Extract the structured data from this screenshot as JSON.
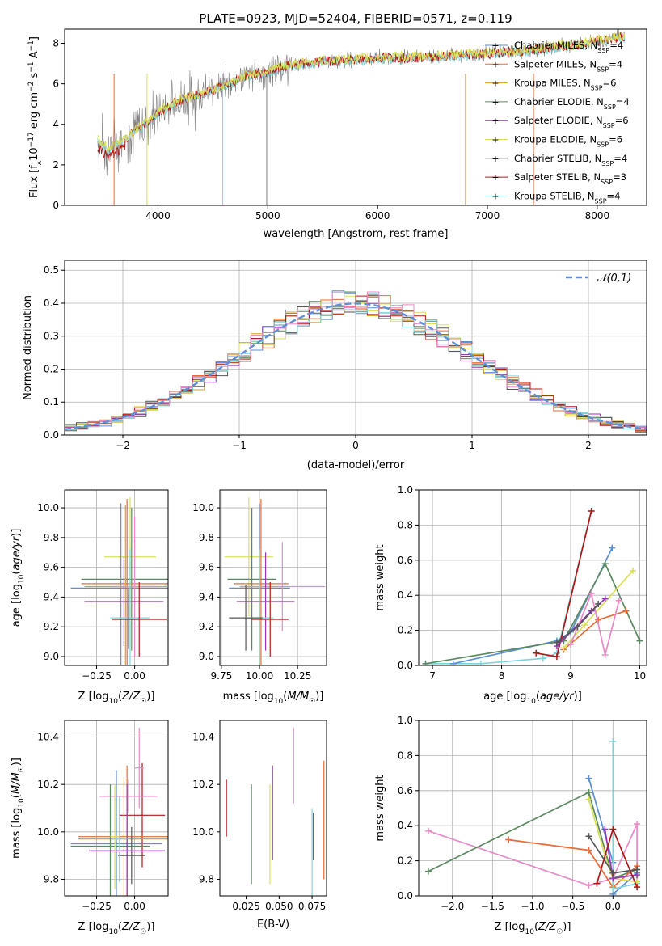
{
  "chart_data": [
    {
      "id": "spectrum",
      "type": "line",
      "title": "PLATE=0923, MJD=52404, FIBERID=0571, z=0.119",
      "xlabel": "wavelength [Angstrom, rest frame]",
      "ylabel": "Flux [f_λ 10^-17 erg cm^-2 s^-1 A^-1]",
      "xlim": [
        3150,
        8450
      ],
      "ylim": [
        0,
        8.7
      ],
      "xticks": [
        4000,
        5000,
        6000,
        7000,
        8000
      ],
      "yticks": [
        0,
        2,
        4,
        6,
        8
      ],
      "legend_position": "top-right",
      "legend": [
        {
          "label": "Chabrier MILES, N",
          "sub": "SSP",
          "post": "=4",
          "color": "#5b8fd6",
          "marker": "+"
        },
        {
          "label": "Salpeter MILES, N",
          "sub": "SSP",
          "post": "=4",
          "color": "#e96b36",
          "marker": "+"
        },
        {
          "label": "Kroupa MILES, N",
          "sub": "SSP",
          "post": "=6",
          "color": "#d9a21f",
          "marker": "+"
        },
        {
          "label": "Chabrier ELODIE, N",
          "sub": "SSP",
          "post": "=4",
          "color": "#5c8a60",
          "marker": "+"
        },
        {
          "label": "Salpeter ELODIE, N",
          "sub": "SSP",
          "post": "=6",
          "color": "#9a36b5",
          "marker": "+"
        },
        {
          "label": "Kroupa ELODIE, N",
          "sub": "SSP",
          "post": "=6",
          "color": "#d9e05a",
          "marker": "+"
        },
        {
          "label": "Chabrier STELIB, N",
          "sub": "SSP",
          "post": "=4",
          "color": "#555555",
          "marker": "+"
        },
        {
          "label": "Salpeter STELIB, N",
          "sub": "SSP",
          "post": "=3",
          "color": "#b01818",
          "marker": "+"
        },
        {
          "label": "Kroupa STELIB, N",
          "sub": "SSP",
          "post": "=4",
          "color": "#7fd3dc",
          "marker": "+"
        }
      ],
      "model_curve": {
        "x": [
          3450,
          3550,
          3700,
          3900,
          4000,
          4200,
          4400,
          4600,
          4800,
          5000,
          5200,
          5500,
          5800,
          6100,
          6400,
          6700,
          7000,
          7300,
          7600,
          7900,
          8200
        ],
        "y": [
          3.2,
          2.8,
          3.3,
          4.1,
          4.6,
          5.2,
          5.5,
          5.9,
          6.4,
          6.6,
          6.9,
          7.1,
          7.2,
          7.3,
          7.3,
          7.4,
          7.5,
          7.6,
          7.8,
          8.0,
          8.3
        ]
      },
      "data_color": "#808080",
      "model_colors": [
        "#7fd3dc",
        "#b01818",
        "#d9e05a"
      ]
    },
    {
      "id": "residuals",
      "type": "histogram",
      "xlabel": "(data-model)/error",
      "ylabel": "Normed distribution",
      "xlim": [
        -2.5,
        2.5
      ],
      "ylim": [
        0,
        0.53
      ],
      "xticks": [
        -2,
        -1,
        0,
        1,
        2
      ],
      "yticks": [
        0.0,
        0.1,
        0.2,
        0.3,
        0.4,
        0.5
      ],
      "grid": true,
      "bin_width": 0.1,
      "legend_position": "top-right",
      "reference_curve": {
        "label": "𝒩(0,1)",
        "mean": 0,
        "sigma": 1,
        "color": "#5b8fd6"
      },
      "series_colors": [
        "#5b8fd6",
        "#e96b36",
        "#d9a21f",
        "#5c8a60",
        "#9a36b5",
        "#d9e05a",
        "#555555",
        "#b01818",
        "#7fd3dc",
        "#e88ac6"
      ]
    },
    {
      "id": "age_vs_Z",
      "type": "errorbar",
      "xlabel": "Z [log10(Z/Z☉)]",
      "ylabel": "age [log10(age/yr)]",
      "xlim": [
        -0.46,
        0.22
      ],
      "ylim": [
        8.94,
        10.12
      ],
      "xticks": [
        -0.25,
        0.0
      ],
      "yticks": [
        9.0,
        9.2,
        9.4,
        9.6,
        9.8,
        10.0
      ],
      "grid": true,
      "points": [
        {
          "x": -0.03,
          "y": 9.67,
          "xerr": 0.17,
          "yerr": 0.4,
          "color": "#d9e05a"
        },
        {
          "x": -0.02,
          "y": 9.52,
          "xerr": 0.33,
          "yerr": 0.48,
          "color": "#5c8a60"
        },
        {
          "x": -0.05,
          "y": 9.49,
          "xerr": 0.3,
          "yerr": 0.57,
          "color": "#e96b36"
        },
        {
          "x": -0.06,
          "y": 9.47,
          "xerr": 0.27,
          "yerr": 0.55,
          "color": "#d9a21f"
        },
        {
          "x": -0.09,
          "y": 9.46,
          "xerr": 0.33,
          "yerr": 0.57,
          "color": "#5b8fd6"
        },
        {
          "x": 0.0,
          "y": 9.47,
          "xerr": 0.15,
          "yerr": 0.47,
          "color": "#e88ac6"
        },
        {
          "x": -0.07,
          "y": 9.37,
          "xerr": 0.26,
          "yerr": 0.3,
          "color": "#9a36b5"
        },
        {
          "x": -0.03,
          "y": 9.26,
          "xerr": 0.13,
          "yerr": 0.46,
          "color": "#7fd3dc"
        },
        {
          "x": 0.03,
          "y": 9.25,
          "xerr": 0.18,
          "yerr": 0.25,
          "color": "#b01818"
        },
        {
          "x": -0.04,
          "y": 9.25,
          "xerr": 0.07,
          "yerr": 0.2,
          "color": "#555555"
        }
      ]
    },
    {
      "id": "age_vs_mass",
      "type": "errorbar",
      "xlabel": "mass [log10(M/M☉)]",
      "ylabel": "",
      "xlim": [
        9.74,
        10.44
      ],
      "ylim": [
        8.94,
        10.12
      ],
      "xticks": [
        9.75,
        10.0,
        10.25
      ],
      "yticks": [
        9.0,
        9.2,
        9.4,
        9.6,
        9.8,
        10.0
      ],
      "grid": true,
      "points": [
        {
          "x": 9.93,
          "y": 9.67,
          "xerr": 0.16,
          "yerr": 0.4,
          "color": "#d9e05a"
        },
        {
          "x": 9.95,
          "y": 9.52,
          "xerr": 0.16,
          "yerr": 0.48,
          "color": "#5c8a60"
        },
        {
          "x": 10.01,
          "y": 9.49,
          "xerr": 0.18,
          "yerr": 0.57,
          "color": "#e96b36"
        },
        {
          "x": 10.0,
          "y": 9.47,
          "xerr": 0.12,
          "yerr": 0.55,
          "color": "#d9a21f"
        },
        {
          "x": 10.0,
          "y": 9.46,
          "xerr": 0.2,
          "yerr": 0.57,
          "color": "#5b8fd6"
        },
        {
          "x": 10.15,
          "y": 9.47,
          "xerr": 0.28,
          "yerr": 0.3,
          "color": "#e88ac6"
        },
        {
          "x": 10.04,
          "y": 9.37,
          "xerr": 0.19,
          "yerr": 0.33,
          "color": "#9a36b5"
        },
        {
          "x": 10.0,
          "y": 9.26,
          "xerr": 0.09,
          "yerr": 0.46,
          "color": "#7fd3dc"
        },
        {
          "x": 10.07,
          "y": 9.25,
          "xerr": 0.12,
          "yerr": 0.25,
          "color": "#b01818"
        },
        {
          "x": 9.91,
          "y": 9.26,
          "xerr": 0.11,
          "yerr": 0.22,
          "color": "#555555"
        }
      ]
    },
    {
      "id": "weight_vs_age",
      "type": "line",
      "xlabel": "age [log10(age/yr)]",
      "ylabel": "mass weight",
      "xlim": [
        6.8,
        10.1
      ],
      "ylim": [
        0,
        1.0
      ],
      "xticks": [
        7,
        8,
        9,
        10
      ],
      "yticks": [
        0.0,
        0.2,
        0.4,
        0.6,
        0.8,
        1.0
      ],
      "grid": true,
      "series": [
        {
          "color": "#7fd3dc",
          "x": [
            6.9,
            7.7,
            8.6,
            8.8,
            9.3
          ],
          "y": [
            0.01,
            0.01,
            0.04,
            0.07,
            0.88
          ]
        },
        {
          "color": "#5b8fd6",
          "x": [
            7.3,
            8.8,
            9.0,
            9.6
          ],
          "y": [
            0.01,
            0.14,
            0.19,
            0.67
          ]
        },
        {
          "color": "#5c8a60",
          "x": [
            6.9,
            8.9,
            9.5,
            10.0
          ],
          "y": [
            0.01,
            0.14,
            0.58,
            0.14
          ]
        },
        {
          "color": "#b01818",
          "x": [
            8.5,
            8.8,
            9.3
          ],
          "y": [
            0.07,
            0.05,
            0.88
          ]
        },
        {
          "color": "#e96b36",
          "x": [
            8.9,
            9.4,
            9.8
          ],
          "y": [
            0.09,
            0.26,
            0.31
          ]
        },
        {
          "color": "#d9e05a",
          "x": [
            8.9,
            9.2,
            9.9
          ],
          "y": [
            0.1,
            0.23,
            0.54
          ]
        },
        {
          "color": "#9a36b5",
          "x": [
            8.8,
            9.3,
            9.5
          ],
          "y": [
            0.11,
            0.31,
            0.38
          ]
        },
        {
          "color": "#e88ac6",
          "x": [
            9.0,
            9.3,
            9.5,
            9.7
          ],
          "y": [
            0.12,
            0.41,
            0.06,
            0.37
          ]
        },
        {
          "color": "#555555",
          "x": [
            8.8,
            9.1,
            9.4
          ],
          "y": [
            0.13,
            0.22,
            0.35
          ]
        }
      ]
    },
    {
      "id": "mass_vs_Z",
      "type": "errorbar",
      "xlabel": "Z [log10(Z/Z☉)]",
      "ylabel": "mass [log10(M/M☉)]",
      "xlim": [
        -0.46,
        0.22
      ],
      "ylim": [
        9.73,
        10.47
      ],
      "xticks": [
        -0.25,
        0.0
      ],
      "yticks": [
        9.8,
        10.0,
        10.2,
        10.4
      ],
      "grid": true,
      "points": [
        {
          "x": 0.05,
          "y": 10.07,
          "xerr": 0.15,
          "yerr": 0.22,
          "color": "#b01818"
        },
        {
          "x": 0.03,
          "y": 10.27,
          "xerr": 0.03,
          "yerr": 0.17,
          "color": "#e88ac6"
        },
        {
          "x": -0.04,
          "y": 10.15,
          "xerr": 0.19,
          "yerr": 0.07,
          "color": "#e88ac6"
        },
        {
          "x": -0.05,
          "y": 9.98,
          "xerr": 0.32,
          "yerr": 0.3,
          "color": "#e96b36"
        },
        {
          "x": -0.07,
          "y": 9.97,
          "xerr": 0.3,
          "yerr": 0.26,
          "color": "#d9a21f"
        },
        {
          "x": -0.12,
          "y": 9.95,
          "xerr": 0.3,
          "yerr": 0.31,
          "color": "#5b8fd6"
        },
        {
          "x": -0.16,
          "y": 9.94,
          "xerr": 0.26,
          "yerr": 0.26,
          "color": "#5c8a60"
        },
        {
          "x": -0.05,
          "y": 9.92,
          "xerr": 0.25,
          "yerr": 0.28,
          "color": "#9a36b5"
        },
        {
          "x": -0.02,
          "y": 9.9,
          "xerr": 0.09,
          "yerr": 0.12,
          "color": "#555555"
        },
        {
          "x": -0.13,
          "y": 9.98,
          "xerr": 0.03,
          "yerr": 0.22,
          "color": "#d9e05a"
        },
        {
          "x": -0.1,
          "y": 9.97,
          "xerr": 0.05,
          "yerr": 0.18,
          "color": "#7fd3dc"
        }
      ]
    },
    {
      "id": "mass_vs_EBV",
      "type": "errorbar",
      "xlabel": "E(B-V)",
      "ylabel": "",
      "xlim": [
        0.005,
        0.086
      ],
      "ylim": [
        9.73,
        10.47
      ],
      "xticks": [
        0.025,
        0.05,
        0.075
      ],
      "yticks": [
        9.8,
        10.0,
        10.2,
        10.4
      ],
      "grid": false,
      "points": [
        {
          "x": 0.01,
          "y": 10.1,
          "xerr": 0,
          "yerr": 0.12,
          "color": "#b01818"
        },
        {
          "x": 0.029,
          "y": 9.99,
          "xerr": 0,
          "yerr": 0.21,
          "color": "#5c8a60"
        },
        {
          "x": 0.043,
          "y": 9.99,
          "xerr": 0,
          "yerr": 0.21,
          "color": "#d9e05a"
        },
        {
          "x": 0.045,
          "y": 10.08,
          "xerr": 0,
          "yerr": 0.2,
          "color": "#9a36b5"
        },
        {
          "x": 0.061,
          "y": 10.28,
          "xerr": 0,
          "yerr": 0.16,
          "color": "#e88ac6"
        },
        {
          "x": 0.075,
          "y": 9.89,
          "xerr": 0,
          "yerr": 0.21,
          "color": "#7fd3dc"
        },
        {
          "x": 0.076,
          "y": 9.98,
          "xerr": 0,
          "yerr": 0.1,
          "color": "#555555"
        },
        {
          "x": 0.084,
          "y": 10.05,
          "xerr": 0,
          "yerr": 0.25,
          "color": "#e96b36"
        }
      ]
    },
    {
      "id": "weight_vs_Z",
      "type": "line",
      "xlabel": "Z [log10(Z/Z☉)]",
      "ylabel": "mass weight",
      "xlim": [
        -2.42,
        0.42
      ],
      "ylim": [
        0,
        1.0
      ],
      "xticks": [
        -2.0,
        -1.5,
        -1.0,
        -0.5,
        0.0
      ],
      "yticks": [
        0.0,
        0.2,
        0.4,
        0.6,
        0.8,
        1.0
      ],
      "grid": true,
      "series": [
        {
          "color": "#e88ac6",
          "x": [
            -2.3,
            -0.3,
            0.0,
            0.3,
            0.3
          ],
          "y": [
            0.37,
            0.06,
            0.1,
            0.41,
            0.05
          ]
        },
        {
          "color": "#5c8a60",
          "x": [
            -2.3,
            -0.3,
            0.0,
            0.3
          ],
          "y": [
            0.14,
            0.59,
            0.1,
            0.15
          ]
        },
        {
          "color": "#e96b36",
          "x": [
            -1.3,
            -0.3,
            0.0,
            0.3
          ],
          "y": [
            0.32,
            0.26,
            0.05,
            0.17
          ]
        },
        {
          "color": "#5b8fd6",
          "x": [
            -0.3,
            0.0,
            0.0,
            0.3
          ],
          "y": [
            0.67,
            0.19,
            0.01,
            0.13
          ]
        },
        {
          "color": "#7fd3dc",
          "x": [
            0.0,
            0.0,
            0.3
          ],
          "y": [
            0.88,
            0.04,
            0.07
          ]
        },
        {
          "color": "#d9e05a",
          "x": [
            -0.3,
            -0.1,
            0.0,
            0.3
          ],
          "y": [
            0.55,
            0.23,
            0.1,
            0.08
          ]
        },
        {
          "color": "#9a36b5",
          "x": [
            -0.1,
            0.0,
            0.3
          ],
          "y": [
            0.38,
            0.1,
            0.12
          ]
        },
        {
          "color": "#b01818",
          "x": [
            -0.2,
            0.0,
            0.3
          ],
          "y": [
            0.07,
            0.38,
            0.05
          ]
        },
        {
          "color": "#555555",
          "x": [
            -0.3,
            0.0,
            0.3
          ],
          "y": [
            0.34,
            0.13,
            0.15
          ]
        }
      ]
    }
  ]
}
